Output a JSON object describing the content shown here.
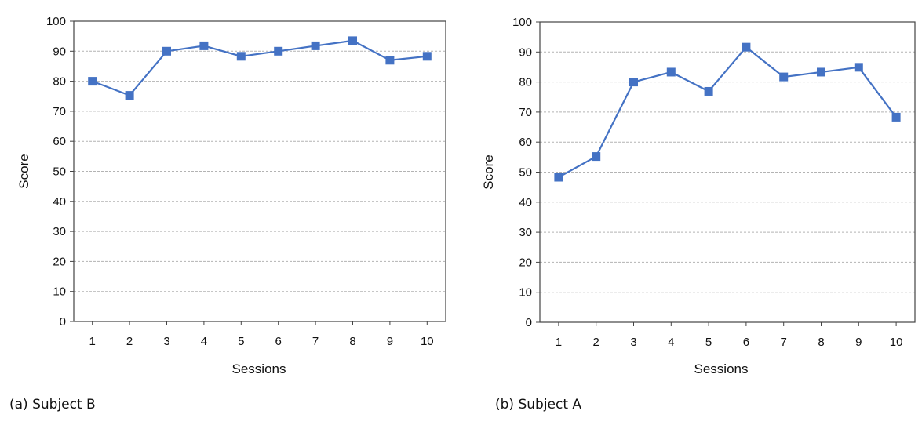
{
  "chart_data": [
    {
      "type": "line",
      "title": "",
      "caption": "(a) Subject B",
      "xlabel": "Sessions",
      "ylabel": "Score",
      "x": [
        1,
        2,
        3,
        4,
        5,
        6,
        7,
        8,
        9,
        10
      ],
      "ylim": [
        0,
        100
      ],
      "yticks": [
        0,
        10,
        20,
        30,
        40,
        50,
        60,
        70,
        80,
        90,
        100
      ],
      "grid": true,
      "legend": "none",
      "colors": {
        "line": "#4472C4",
        "marker": "#4472C4",
        "grid": "#b3b3b3"
      },
      "series": [
        {
          "values": [
            80,
            75.3,
            90,
            91.8,
            88.3,
            90,
            91.8,
            93.5,
            87,
            88.3
          ]
        }
      ]
    },
    {
      "type": "line",
      "title": "",
      "caption": "(b) Subject A",
      "xlabel": "Sessions",
      "ylabel": "Score",
      "x": [
        1,
        2,
        3,
        4,
        5,
        6,
        7,
        8,
        9,
        10
      ],
      "ylim": [
        0,
        100
      ],
      "yticks": [
        0,
        10,
        20,
        30,
        40,
        50,
        60,
        70,
        80,
        90,
        100
      ],
      "grid": true,
      "legend": "none",
      "colors": {
        "line": "#4472C4",
        "marker": "#4472C4",
        "grid": "#b3b3b3"
      },
      "series": [
        {
          "values": [
            48.3,
            55.2,
            80,
            83.3,
            76.9,
            91.6,
            81.7,
            83.3,
            84.9,
            68.3
          ]
        }
      ]
    }
  ]
}
